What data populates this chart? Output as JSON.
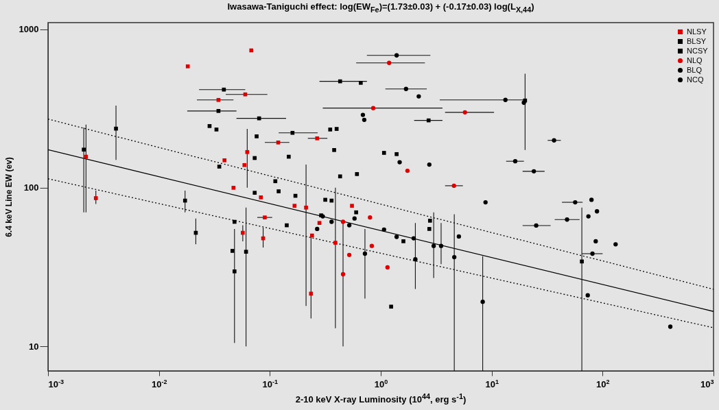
{
  "chart_data": {
    "type": "scatter",
    "title": "Iwasawa-Taniguchi  effect:  log(EW$_{Fe}$)=(1.73±0.03) + (-0.17±0.03) log(L$_{X,44}$)",
    "xlabel": "2-10 keV X-ray Luminosity (10$^{44}$, erg s$^{-1}$)",
    "ylabel": "6.4 keV Line EW (ev)",
    "log": "xy",
    "xlim": [
      0.001,
      1000
    ],
    "ylim": [
      7,
      1100
    ],
    "xticks": [
      {
        "value": 0.001,
        "label": "10$^{-3}$"
      },
      {
        "value": 0.01,
        "label": "10$^{-2}$"
      },
      {
        "value": 0.1,
        "label": "10$^{-1}$"
      },
      {
        "value": 1,
        "label": "10$^{0}$"
      },
      {
        "value": 10,
        "label": "10$^{1}$"
      },
      {
        "value": 100,
        "label": "10$^{2}$"
      },
      {
        "value": 1000,
        "label": "10$^{3}$"
      }
    ],
    "yticks": [
      10,
      100,
      1000
    ],
    "legend": "top right",
    "grid": false,
    "series": [
      {
        "name": "NLSY",
        "color": "#e00000",
        "marker": "square",
        "x": [
          0.0182,
          0.068,
          0.0344,
          0.06,
          0.0022,
          0.0027,
          0.0625,
          0.059,
          0.039,
          0.047,
          0.267,
          0.119,
          0.083,
          0.09,
          0.057,
          0.087,
          0.167,
          0.212,
          0.24,
          0.235,
          0.28,
          0.39,
          0.55
        ],
        "values": [
          583,
          735,
          358,
          388,
          157,
          86,
          168,
          139,
          149,
          100,
          205,
          193,
          87,
          65,
          52,
          48,
          77,
          75,
          50,
          21.5,
          60,
          45,
          77
        ],
        "errors": [
          null,
          null,
          null,
          null,
          [
            70,
            250
          ],
          [
            79,
            96
          ],
          [
            100,
            235
          ],
          null,
          null,
          null,
          null,
          null,
          null,
          null,
          [
            46,
            58
          ],
          [
            42,
            56
          ],
          null,
          [
            18,
            140
          ],
          null,
          [
            15,
            50
          ],
          null,
          [
            13,
            100
          ],
          null
        ],
        "xerrors": [
          null,
          null,
          [
            0.022,
            0.047
          ],
          [
            0.04,
            0.095
          ],
          null,
          null,
          null,
          null,
          null,
          null,
          [
            0.22,
            0.33
          ],
          [
            0.09,
            0.15
          ],
          null,
          [
            0.077,
            0.105
          ],
          null,
          null,
          null,
          null,
          null,
          null,
          null,
          null,
          null
        ]
      },
      {
        "name": "BLSY",
        "color": "#000000",
        "marker": "square",
        "x": [
          0.0041,
          0.0172,
          0.0215,
          0.061,
          0.048,
          0.0286,
          0.033,
          0.076,
          0.073,
          0.112,
          0.12,
          0.148,
          0.17,
          0.316,
          0.36,
          0.43,
          0.61,
          0.29,
          1.39,
          1.07,
          0.6,
          1.6,
          2.74
        ],
        "values": [
          236,
          83,
          52,
          39.5,
          29.7,
          245,
          233,
          211,
          93,
          110,
          95,
          157,
          89,
          84,
          83,
          118,
          122,
          67,
          163,
          166,
          70,
          46,
          55
        ],
        "errors": [
          [
            150,
            330
          ],
          [
            70,
            96
          ],
          [
            44,
            64
          ],
          [
            10,
            75
          ],
          [
            10.5,
            55
          ],
          null,
          null,
          null,
          null,
          null,
          null,
          null,
          null,
          null,
          null,
          null,
          null,
          null,
          null,
          null,
          null,
          null,
          null
        ]
      },
      {
        "name": "NCSY",
        "color": "#000000",
        "marker": "square",
        "x": [
          0.0021,
          0.0385,
          0.0344,
          0.08,
          0.073,
          0.035,
          0.16,
          0.43,
          0.66,
          0.35,
          0.4,
          0.38,
          2.7,
          20,
          0.048,
          0.046,
          0.142,
          1.24,
          65,
          2.78
        ],
        "values": [
          174,
          416,
          305,
          274,
          154,
          136,
          222,
          469,
          459,
          233,
          235,
          173,
          266,
          355,
          61,
          40,
          58,
          17.8,
          34.3,
          62
        ],
        "errors": [
          [
            70,
            240
          ],
          null,
          null,
          null,
          null,
          null,
          null,
          null,
          null,
          null,
          null,
          null,
          null,
          [
            173,
            524
          ],
          null,
          null,
          null,
          null,
          [
            7,
            75
          ],
          null
        ],
        "xerrors": [
          null,
          [
            0.023,
            0.06
          ],
          [
            0.018,
            0.05
          ],
          [
            0.05,
            0.14
          ],
          null,
          null,
          [
            0.12,
            0.27
          ],
          [
            0.28,
            0.75
          ],
          null,
          null,
          null,
          null,
          [
            2,
            3.6
          ],
          null,
          null,
          null,
          null,
          null,
          null,
          null
        ]
      },
      {
        "name": "NLQ",
        "color": "#e00000",
        "marker": "circle",
        "x": [
          0.457,
          0.52,
          1.19,
          0.855,
          5.74,
          4.57,
          1.74,
          1.15,
          0.83,
          0.8,
          0.457
        ],
        "values": [
          28.5,
          37.7,
          613,
          318,
          299,
          103,
          128,
          31.5,
          43,
          65,
          61
        ],
        "errors": [
          [
            10,
            60
          ],
          null,
          null,
          null,
          null,
          null,
          null,
          null,
          null,
          null,
          null
        ],
        "xerrors": [
          null,
          null,
          [
            0.6,
            2.5
          ],
          [
            0.3,
            3.6
          ],
          [
            3.8,
            10.5
          ],
          [
            3.8,
            5.5
          ],
          null,
          null,
          null,
          null,
          null
        ]
      },
      {
        "name": "BLQ",
        "color": "#000000",
        "marker": "circle",
        "x": [
          1.39,
          0.69,
          2.74,
          1.48,
          36.5,
          8.8,
          89,
          131,
          408,
          8.3,
          5.06,
          4.6,
          3,
          3.5,
          2.05,
          1.98,
          1.39,
          0.72,
          1.07,
          0.52,
          0.58,
          0.3,
          0.267,
          0.36
        ],
        "values": [
          684,
          288,
          140,
          145,
          199,
          81,
          71,
          44,
          13.3,
          19.1,
          49.3,
          36.5,
          43,
          43,
          35.4,
          48,
          49,
          38.4,
          54.5,
          58,
          64,
          66,
          55,
          61
        ],
        "errors": [
          null,
          null,
          null,
          null,
          null,
          null,
          null,
          null,
          null,
          [
            7,
            37
          ],
          null,
          [
            7,
            68
          ],
          [
            27,
            70
          ],
          [
            33,
            60
          ],
          [
            23,
            60
          ],
          null,
          null,
          [
            20,
            55
          ],
          null,
          null,
          null,
          null,
          null,
          null
        ],
        "xerrors": [
          [
            0.75,
            2.8
          ],
          null,
          null,
          null,
          [
            32,
            42
          ],
          null,
          null,
          null,
          null,
          null,
          null,
          null,
          null,
          null,
          null,
          null,
          null,
          null,
          null,
          null,
          null,
          null,
          null,
          null
        ]
      },
      {
        "name": "NCQ",
        "color": "#000000",
        "marker": "circle",
        "x": [
          1.69,
          2.2,
          0.71,
          13.3,
          19.5,
          16.3,
          24,
          25.2,
          47.8,
          56.6,
          79.4,
          74.5,
          86.7,
          81,
          73.5
        ],
        "values": [
          420,
          377,
          268,
          358,
          344,
          147,
          127,
          57.8,
          63,
          81,
          84,
          66,
          46,
          38.4,
          21
        ],
        "xerrors": [
          [
            1.1,
            2.6
          ],
          null,
          null,
          [
            3.4,
            20
          ],
          null,
          [
            13.5,
            19.5
          ],
          [
            19,
            30
          ],
          [
            19,
            34
          ],
          [
            37,
            62
          ],
          [
            43,
            66
          ],
          null,
          null,
          null,
          [
            65,
            100
          ],
          null
        ]
      },
      {
        "type": "line",
        "color": "#000000",
        "line_style": "solid",
        "x": [
          0.001,
          1000
        ],
        "values": [
          173.8,
          16.6
        ]
      },
      {
        "type": "line",
        "color": "#000000",
        "line_style": "dotted",
        "x": [
          0.001,
          1000
        ],
        "values": [
          271,
          22.9
        ]
      },
      {
        "type": "line",
        "color": "#000000",
        "line_style": "dotted",
        "x": [
          0.001,
          1000
        ],
        "values": [
          114,
          13.1
        ]
      }
    ]
  }
}
